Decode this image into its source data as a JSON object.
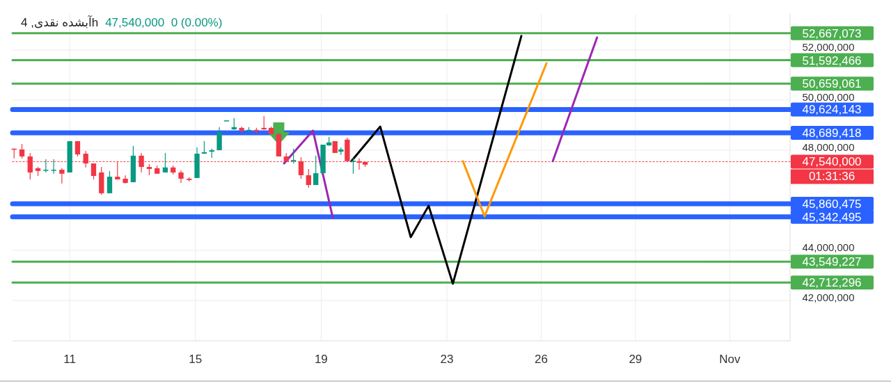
{
  "chart_data": {
    "type": "candlestick",
    "title": "آبشده نقدی, 4h",
    "subtitle": "47,540,000  0 (0.00%)",
    "x": [
      9.23,
      9.48,
      9.74,
      9.99,
      10.24,
      10.49,
      10.75,
      11,
      11.25,
      11.51,
      11.76,
      12.01,
      12.27,
      12.52,
      12.77,
      13.02,
      13.28,
      13.53,
      13.78,
      14.04,
      14.29,
      14.54,
      14.8,
      15.05,
      15.28,
      15.52,
      15.76,
      15.99,
      16.23,
      16.47,
      16.7,
      16.94,
      17.18,
      17.41,
      17.65,
      17.89,
      18.12,
      18.36,
      18.6,
      18.83,
      19.06,
      19.25,
      19.44,
      19.63,
      19.83,
      20.02,
      20.21,
      20.4
    ],
    "ohlc": [
      [
        48060000,
        48060000,
        47670000,
        48030000
      ],
      [
        48030000,
        48250000,
        47670000,
        47750000
      ],
      [
        47750000,
        47890000,
        46830000,
        47110000
      ],
      [
        47280000,
        47330000,
        46970000,
        47170000
      ],
      [
        47190000,
        47640000,
        47110000,
        47220000
      ],
      [
        47190000,
        47640000,
        47060000,
        47220000
      ],
      [
        47220000,
        47280000,
        46670000,
        47060000
      ],
      [
        47110000,
        48360000,
        47110000,
        48360000
      ],
      [
        48360000,
        48360000,
        47750000,
        47830000
      ],
      [
        47860000,
        47970000,
        47310000,
        47470000
      ],
      [
        47470000,
        47470000,
        46830000,
        46970000
      ],
      [
        47110000,
        47330000,
        46220000,
        46280000
      ],
      [
        46280000,
        47170000,
        46280000,
        46940000
      ],
      [
        46940000,
        47560000,
        46830000,
        46830000
      ],
      [
        46860000,
        47000000,
        46670000,
        46690000
      ],
      [
        46720000,
        48170000,
        46720000,
        47780000
      ],
      [
        47780000,
        47890000,
        47110000,
        47330000
      ],
      [
        47330000,
        47440000,
        47000000,
        47250000
      ],
      [
        47280000,
        47390000,
        47060000,
        47060000
      ],
      [
        47110000,
        47890000,
        47110000,
        47310000
      ],
      [
        47310000,
        47390000,
        47030000,
        47110000
      ],
      [
        47110000,
        47190000,
        46690000,
        46860000
      ],
      [
        46860000,
        46920000,
        46750000,
        46810000
      ],
      [
        46890000,
        48110000,
        46890000,
        47860000
      ],
      [
        47860000,
        48360000,
        47860000,
        47920000
      ],
      [
        47940000,
        48060000,
        47690000,
        48000000
      ],
      [
        48000000,
        48920000,
        48000000,
        48720000
      ],
      [
        49190000,
        49190000,
        49190000,
        49190000
      ],
      [
        48830000,
        49280000,
        48810000,
        48920000
      ],
      [
        48890000,
        48940000,
        48690000,
        48780000
      ],
      [
        48780000,
        48920000,
        48670000,
        48810000
      ],
      [
        48810000,
        48890000,
        48670000,
        48750000
      ],
      [
        48890000,
        49360000,
        48810000,
        48830000
      ],
      [
        48890000,
        48940000,
        48640000,
        48640000
      ],
      [
        48640000,
        48690000,
        47750000,
        47750000
      ],
      [
        47750000,
        47890000,
        47560000,
        47560000
      ],
      [
        47560000,
        48060000,
        47470000,
        47610000
      ],
      [
        47560000,
        47720000,
        46860000,
        47000000
      ],
      [
        47000000,
        47250000,
        46500000,
        46610000
      ],
      [
        46610000,
        47780000,
        46610000,
        47080000
      ],
      [
        47080000,
        48220000,
        47080000,
        48220000
      ],
      [
        48190000,
        48530000,
        48170000,
        48310000
      ],
      [
        48360000,
        48360000,
        47890000,
        47890000
      ],
      [
        47940000,
        48110000,
        47810000,
        48030000
      ],
      [
        48420000,
        48500000,
        47560000,
        47560000
      ],
      [
        47560000,
        47690000,
        47060000,
        47580000
      ],
      [
        47560000,
        47670000,
        47220000,
        47500000
      ],
      [
        47530000,
        47530000,
        47330000,
        47420000
      ]
    ],
    "series": [
      {
        "type": "line",
        "color": "#000000",
        "x": [
          19.96,
          20.88,
          21.85,
          22.42,
          23.19,
          25.37
        ],
        "values": [
          47560000,
          48940000,
          44530000,
          45780000,
          42670000,
          52560000
        ]
      },
      {
        "type": "line",
        "color": "#ff9800",
        "x": [
          23.51,
          24.2,
          26.17
        ],
        "values": [
          47560000,
          45360000,
          51470000
        ]
      },
      {
        "type": "line",
        "color": "#9c27b0",
        "x": [
          17.82,
          18.74,
          19.37
        ],
        "values": [
          47470000,
          48780000,
          45310000
        ]
      },
      {
        "type": "line",
        "color": "#9c27b0",
        "x": [
          26.37,
          27.78
        ],
        "values": [
          47560000,
          52500000
        ]
      }
    ],
    "ref_lines": [
      {
        "axis": "y",
        "value": 52667073,
        "label": "52,667,073",
        "color": "#4caf50",
        "line_style": "solid"
      },
      {
        "axis": "y",
        "value": 51592466,
        "label": "51,592,466",
        "color": "#4caf50",
        "line_style": "solid"
      },
      {
        "axis": "y",
        "value": 50659061,
        "label": "50,659,061",
        "color": "#4caf50",
        "line_style": "solid"
      },
      {
        "axis": "y",
        "value": 49624143,
        "label": "49,624,143",
        "color": "#2962ff",
        "line_style": "solid"
      },
      {
        "axis": "y",
        "value": 48689418,
        "label": "48,689,418",
        "color": "#2962ff",
        "line_style": "solid"
      },
      {
        "axis": "y",
        "value": 47540000,
        "label": "47,540,000",
        "color": "#f23645",
        "line_style": "dotted"
      },
      {
        "axis": "y",
        "value": 45860475,
        "label": "45,860,475",
        "color": "#2962ff",
        "line_style": "solid"
      },
      {
        "axis": "y",
        "value": 45342495,
        "label": "45,342,495",
        "color": "#2962ff",
        "line_style": "solid"
      },
      {
        "axis": "y",
        "value": 43549227,
        "label": "43,549,227",
        "color": "#4caf50",
        "line_style": "solid"
      },
      {
        "axis": "y",
        "value": 42712296,
        "label": "42,712,296",
        "color": "#4caf50",
        "line_style": "solid"
      }
    ],
    "annotations": [
      "01:31:36"
    ],
    "xlim": [
      9.18,
      33.92
    ],
    "xticks": [
      11,
      15,
      19,
      23,
      26,
      29,
      {
        "value": 32,
        "label": "Nov"
      }
    ],
    "ylim": [
      40390000,
      53440000
    ],
    "yticks": [
      {
        "value": 42000000,
        "label": "42,000,000"
      },
      {
        "value": 44000000,
        "label": "44,000,000"
      },
      {
        "value": 48000000,
        "label": "48,000,000"
      },
      {
        "value": 50000000,
        "label": "50,000,000"
      },
      {
        "value": 52000000,
        "label": "52,000,000"
      }
    ],
    "grid": true
  }
}
